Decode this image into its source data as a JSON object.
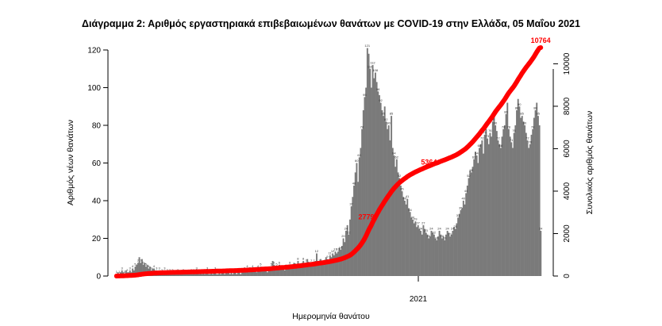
{
  "chart_data": {
    "type": "bar",
    "title": "Διάγραμμα 2: Αριθμός εργαστηριακά επιβεβαιωμένων θανάτων με COVID-19 στην Ελλάδα, 05 Μαΐου 2021",
    "xlabel": "Ημερομηνία θανάτου",
    "ylabel": "Αριθμός νέων θανάτων",
    "ylabel_right": "Συνολικός αριθμός θανάτων",
    "x_tick_labels": [
      "2021"
    ],
    "ylim": [
      0,
      125
    ],
    "yticks": [
      0,
      20,
      40,
      60,
      80,
      100,
      120
    ],
    "ylim_right": [
      0,
      10764
    ],
    "yticks_right": [
      0,
      2000,
      4000,
      6000,
      8000,
      10000
    ],
    "grid": false,
    "series": [
      {
        "type": "bar",
        "color": "#7a7a7a",
        "values": [
          1,
          2,
          1,
          2,
          3,
          2,
          1,
          3,
          2,
          2,
          3,
          2,
          4,
          3,
          5,
          6,
          7,
          10,
          7,
          9,
          6,
          7,
          5,
          6,
          4,
          5,
          3,
          4,
          4,
          3,
          3,
          2,
          3,
          2,
          2,
          1,
          3,
          2,
          2,
          1,
          2,
          1,
          2,
          2,
          1,
          1,
          2,
          2,
          1,
          1,
          2,
          1,
          1,
          2,
          1,
          1,
          2,
          1,
          2,
          1,
          3,
          2,
          1,
          2,
          1,
          2,
          1,
          2,
          3,
          1,
          1,
          2,
          1,
          2,
          3,
          1,
          1,
          2,
          1,
          2,
          2,
          1,
          2,
          3,
          2,
          1,
          2,
          1,
          2,
          2,
          1,
          3,
          2,
          1,
          2,
          3,
          3,
          2,
          4,
          2,
          3,
          3,
          4,
          3,
          3,
          2,
          4,
          3,
          5,
          4,
          3,
          4,
          3,
          2,
          3,
          4,
          5,
          8,
          6,
          4,
          5,
          4,
          6,
          5,
          4,
          5,
          3,
          6,
          4,
          5,
          6,
          5,
          4,
          7,
          5,
          6,
          8,
          6,
          5,
          7,
          8,
          6,
          7,
          9,
          6,
          5,
          7,
          6,
          7,
          8,
          12,
          8,
          7,
          9,
          6,
          8,
          7,
          10,
          9,
          8,
          11,
          10,
          12,
          11,
          13,
          12,
          13,
          15,
          14,
          16,
          20,
          18,
          24,
          27,
          22,
          30,
          37,
          42,
          48,
          55,
          60,
          50,
          63,
          68,
          78,
          88,
          95,
          100,
          121,
          118,
          110,
          100,
          112,
          105,
          108,
          103,
          98,
          96,
          92,
          88,
          85,
          90,
          82,
          78,
          80,
          72,
          85,
          68,
          64,
          58,
          62,
          55,
          52,
          48,
          45,
          42,
          40,
          38,
          41,
          36,
          34,
          31,
          30,
          28,
          29,
          26,
          27,
          25,
          24,
          22,
          27,
          25,
          23,
          22,
          20,
          21,
          24,
          23,
          22,
          20,
          19,
          21,
          24,
          22,
          20,
          21,
          19,
          22,
          24,
          23,
          21,
          22,
          24,
          26,
          25,
          28,
          31,
          33,
          35,
          36,
          40,
          38,
          44,
          48,
          52,
          56,
          55,
          58,
          62,
          66,
          64,
          60,
          68,
          70,
          72,
          65,
          75,
          78,
          73,
          70,
          76,
          74,
          82,
          85,
          80,
          77,
          72,
          70,
          68,
          74,
          78,
          80,
          86,
          92,
          78,
          74,
          71,
          68,
          76,
          80,
          88,
          94,
          90,
          84,
          85,
          82,
          80,
          76,
          72,
          68,
          70,
          75,
          78,
          84,
          88,
          92,
          85,
          80,
          24
        ]
      },
      {
        "type": "line",
        "axis": "right",
        "color": "#ff0000",
        "annotations": [
          {
            "label": "2779",
            "value": 2779
          },
          {
            "label": "5364",
            "value": 5364
          },
          {
            "label": "10764",
            "value": 10764
          }
        ]
      }
    ]
  }
}
